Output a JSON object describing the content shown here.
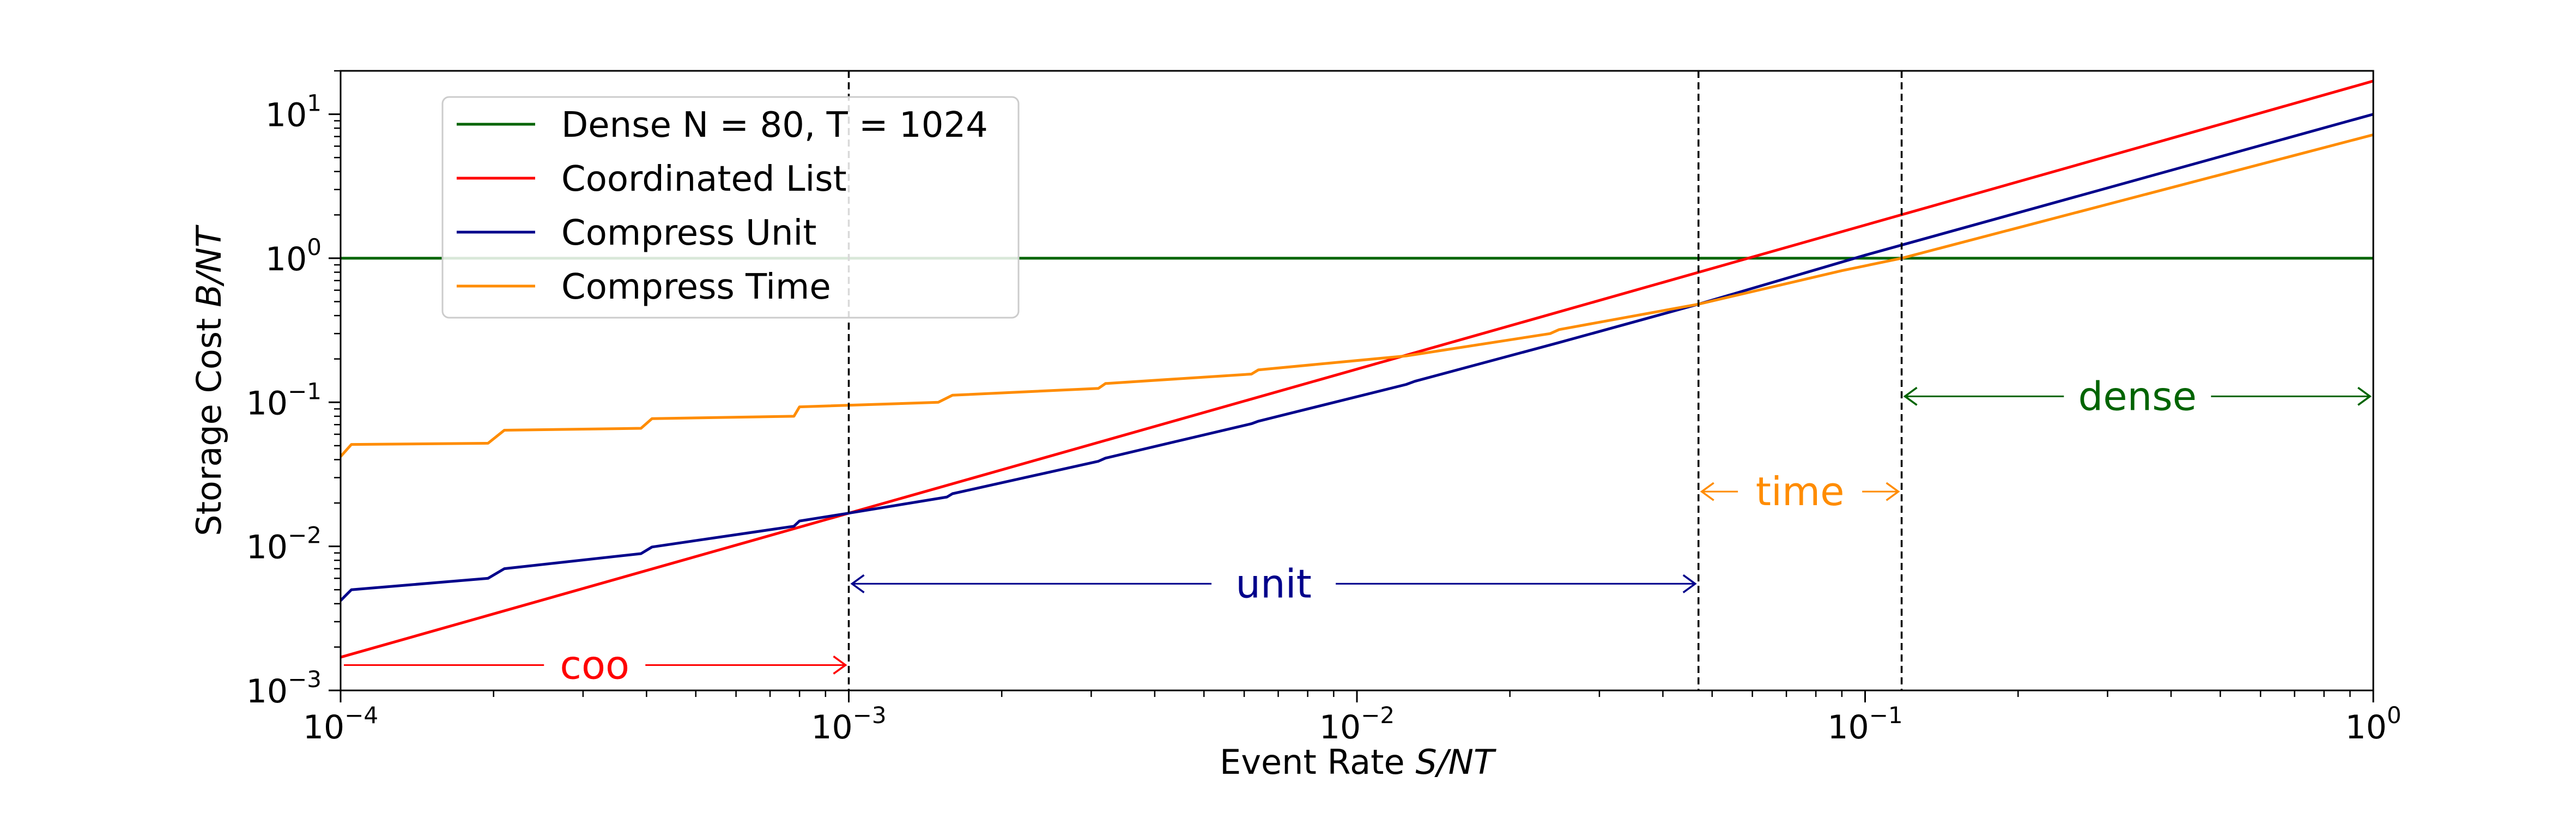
{
  "chart_data": {
    "type": "line",
    "x_scale": "log",
    "y_scale": "log",
    "xlabel_prefix": "Event Rate ",
    "xlabel_math": "S/NT",
    "ylabel_prefix": "Storage Cost ",
    "ylabel_math": "B/NT",
    "xlim": [
      0.0001,
      1
    ],
    "ylim": [
      0.001,
      20
    ],
    "x_ticks": [
      {
        "value": 0.0001,
        "base": "10",
        "exp": "−4"
      },
      {
        "value": 0.001,
        "base": "10",
        "exp": "−3"
      },
      {
        "value": 0.01,
        "base": "10",
        "exp": "−2"
      },
      {
        "value": 0.1,
        "base": "10",
        "exp": "−1"
      },
      {
        "value": 1,
        "base": "10",
        "exp": "0"
      }
    ],
    "y_ticks": [
      {
        "value": 0.001,
        "base": "10",
        "exp": "−3"
      },
      {
        "value": 0.01,
        "base": "10",
        "exp": "−2"
      },
      {
        "value": 0.1,
        "base": "10",
        "exp": "−1"
      },
      {
        "value": 1,
        "base": "10",
        "exp": "0"
      },
      {
        "value": 10,
        "base": "10",
        "exp": "1"
      }
    ],
    "grid": false,
    "legend_position": "upper-left",
    "series": [
      {
        "name": "Dense N = 80, T = 1024",
        "color": "#006400",
        "x": [
          0.0001,
          1
        ],
        "y": [
          1,
          1
        ]
      },
      {
        "name": "Coordinated List",
        "color": "#ff0000",
        "x": [
          0.0001,
          1
        ],
        "y": [
          0.0017,
          17
        ]
      },
      {
        "name": "Compress Unit",
        "color": "#00008b",
        "x": [
          0.0001,
          0.000105,
          0.000195,
          0.00021,
          0.00039,
          0.00041,
          0.00078,
          0.0008,
          0.001,
          0.00156,
          0.0016,
          0.0031,
          0.0032,
          0.0062,
          0.0064,
          0.0125,
          0.013,
          0.025,
          0.047,
          0.1,
          1
        ],
        "y": [
          0.0042,
          0.005,
          0.006,
          0.007,
          0.0089,
          0.0099,
          0.0138,
          0.015,
          0.017,
          0.022,
          0.0232,
          0.039,
          0.041,
          0.071,
          0.074,
          0.133,
          0.14,
          0.26,
          0.48,
          1.05,
          10
        ]
      },
      {
        "name": "Compress Time",
        "color": "#ff8c00",
        "x": [
          0.0001,
          0.000105,
          0.000195,
          0.00021,
          0.00039,
          0.00041,
          0.00078,
          0.0008,
          0.0015,
          0.0016,
          0.0031,
          0.0032,
          0.0062,
          0.0064,
          0.0125,
          0.024,
          0.025,
          0.047,
          0.09,
          0.118,
          1
        ],
        "y": [
          0.042,
          0.051,
          0.052,
          0.064,
          0.066,
          0.077,
          0.08,
          0.093,
          0.1,
          0.112,
          0.125,
          0.135,
          0.157,
          0.168,
          0.21,
          0.3,
          0.32,
          0.48,
          0.82,
          1.0,
          7.2
        ]
      }
    ],
    "vlines": [
      0.001,
      0.047,
      0.118
    ],
    "annotations": [
      {
        "label": "coo",
        "color": "#ff0000",
        "x_from": 0.0001,
        "x_to": 0.001,
        "y": 0.0015,
        "head_left": false,
        "head_right": true
      },
      {
        "label": "unit",
        "color": "#00008b",
        "x_from": 0.001,
        "x_to": 0.047,
        "y": 0.0055,
        "head_left": true,
        "head_right": true
      },
      {
        "label": "time",
        "color": "#ff8c00",
        "x_from": 0.047,
        "x_to": 0.118,
        "y": 0.024,
        "head_left": true,
        "head_right": true
      },
      {
        "label": "dense",
        "color": "#006400",
        "x_from": 0.118,
        "x_to": 1,
        "y": 0.11,
        "head_left": true,
        "head_right": true
      }
    ]
  }
}
